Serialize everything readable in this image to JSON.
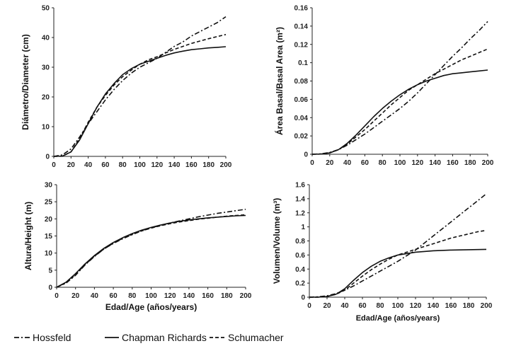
{
  "chart_data": [
    {
      "type": "line",
      "ylabel": "Diámetro/Diameter (cm)",
      "xlabel": "",
      "xlim": [
        0,
        200
      ],
      "ylim": [
        0,
        50
      ],
      "xticks": [
        0,
        20,
        40,
        60,
        80,
        100,
        120,
        140,
        160,
        180,
        200
      ],
      "yticks": [
        0,
        10,
        20,
        30,
        40,
        50
      ],
      "ytick_labels": [
        "0",
        "10",
        "20",
        "30",
        "40",
        "50"
      ],
      "x": [
        0,
        10,
        20,
        30,
        40,
        50,
        60,
        70,
        80,
        90,
        100,
        110,
        120,
        130,
        140,
        150,
        160,
        170,
        180,
        190,
        200
      ],
      "series": [
        {
          "name": "Hossfeld",
          "values": [
            0,
            0.5,
            2.5,
            6.5,
            11,
            15,
            19,
            22.5,
            25.5,
            28,
            30,
            31.5,
            33,
            35,
            37,
            38.5,
            40.5,
            42,
            43.5,
            45,
            47
          ]
        },
        {
          "name": "Chapman Richards",
          "values": [
            0,
            0.1,
            1.5,
            5.5,
            11,
            16.5,
            21,
            24.5,
            27.5,
            29.5,
            31,
            32,
            33,
            34,
            34.8,
            35.4,
            35.9,
            36.2,
            36.5,
            36.7,
            36.9
          ]
        },
        {
          "name": "Schumacher",
          "values": [
            0,
            0.05,
            1.5,
            6,
            11.5,
            16.5,
            20.5,
            24,
            26.8,
            29,
            31,
            32.5,
            33.5,
            34.8,
            36,
            37,
            38,
            38.8,
            39.6,
            40.3,
            41
          ]
        }
      ]
    },
    {
      "type": "line",
      "ylabel": "Área Basal/Basal Area (m²)",
      "xlabel": "",
      "xlim": [
        0,
        200
      ],
      "ylim": [
        0,
        0.16
      ],
      "xticks": [
        0,
        20,
        40,
        60,
        80,
        100,
        120,
        140,
        160,
        180,
        200
      ],
      "yticks": [
        0,
        0.02,
        0.04,
        0.06,
        0.08,
        0.1,
        0.12,
        0.14,
        0.16
      ],
      "ytick_labels": [
        "0",
        "0.02",
        "0.04",
        "0.06",
        "0.08",
        "0.1",
        "0.12",
        "0.14",
        "0.16"
      ],
      "x": [
        0,
        10,
        20,
        30,
        40,
        50,
        60,
        70,
        80,
        90,
        100,
        110,
        120,
        130,
        140,
        150,
        160,
        170,
        180,
        190,
        200
      ],
      "series": [
        {
          "name": "Hossfeld",
          "values": [
            0,
            0.0005,
            0.002,
            0.005,
            0.01,
            0.016,
            0.022,
            0.029,
            0.036,
            0.043,
            0.05,
            0.058,
            0.067,
            0.077,
            0.087,
            0.097,
            0.107,
            0.116,
            0.126,
            0.135,
            0.145
          ]
        },
        {
          "name": "Chapman Richards",
          "values": [
            0,
            0.0002,
            0.0015,
            0.005,
            0.012,
            0.021,
            0.031,
            0.041,
            0.05,
            0.058,
            0.065,
            0.071,
            0.076,
            0.08,
            0.083,
            0.086,
            0.088,
            0.089,
            0.09,
            0.091,
            0.092
          ]
        },
        {
          "name": "Schumacher",
          "values": [
            0,
            0.0002,
            0.0015,
            0.005,
            0.011,
            0.019,
            0.027,
            0.036,
            0.045,
            0.054,
            0.062,
            0.07,
            0.076,
            0.082,
            0.088,
            0.093,
            0.098,
            0.103,
            0.107,
            0.111,
            0.115
          ]
        }
      ]
    },
    {
      "type": "line",
      "ylabel": "Altura/Height (m)",
      "xlabel": "Edad/Age (años/years)",
      "xlim": [
        0,
        200
      ],
      "ylim": [
        0,
        30
      ],
      "xticks": [
        0,
        20,
        40,
        60,
        80,
        100,
        120,
        140,
        160,
        180,
        200
      ],
      "yticks": [
        0,
        5,
        10,
        15,
        20,
        25,
        30
      ],
      "ytick_labels": [
        "0",
        "5",
        "10",
        "15",
        "20",
        "25",
        "30"
      ],
      "x": [
        0,
        10,
        20,
        30,
        40,
        50,
        60,
        70,
        80,
        90,
        100,
        110,
        120,
        130,
        140,
        150,
        160,
        170,
        180,
        190,
        200
      ],
      "series": [
        {
          "name": "Hossfeld",
          "values": [
            0,
            1.2,
            3.5,
            6.5,
            9,
            11.2,
            12.8,
            14.2,
            15.4,
            16.5,
            17.4,
            18.1,
            18.8,
            19.4,
            20,
            20.6,
            21.1,
            21.6,
            22,
            22.4,
            22.8
          ]
        },
        {
          "name": "Chapman Richards",
          "values": [
            0,
            1.5,
            4,
            6.8,
            9.3,
            11.4,
            13.1,
            14.5,
            15.7,
            16.7,
            17.5,
            18.2,
            18.8,
            19.3,
            19.7,
            20,
            20.3,
            20.5,
            20.7,
            20.9,
            21
          ]
        },
        {
          "name": "Schumacher",
          "values": [
            0,
            1.3,
            3.7,
            6.6,
            9.1,
            11.2,
            12.9,
            14.3,
            15.5,
            16.5,
            17.3,
            18,
            18.6,
            19.1,
            19.5,
            19.9,
            20.2,
            20.5,
            20.8,
            21,
            21.2
          ]
        }
      ]
    },
    {
      "type": "line",
      "ylabel": "Volumen/Volume (m³)",
      "xlabel": "Edad/Age (años/years)",
      "xlim": [
        0,
        200
      ],
      "ylim": [
        0,
        1.6
      ],
      "xticks": [
        0,
        20,
        40,
        60,
        80,
        100,
        120,
        140,
        160,
        180,
        200
      ],
      "yticks": [
        0,
        0.2,
        0.4,
        0.6,
        0.8,
        1,
        1.2,
        1.4,
        1.6
      ],
      "ytick_labels": [
        "0",
        "0.2",
        "0.4",
        "0.6",
        "0.8",
        "1",
        "1.2",
        "1.4",
        "1.6"
      ],
      "x": [
        0,
        10,
        20,
        30,
        40,
        50,
        60,
        70,
        80,
        90,
        100,
        110,
        120,
        130,
        140,
        150,
        160,
        170,
        180,
        190,
        200
      ],
      "series": [
        {
          "name": "Hossfeld",
          "values": [
            0,
            0.005,
            0.02,
            0.05,
            0.1,
            0.16,
            0.23,
            0.3,
            0.37,
            0.44,
            0.51,
            0.59,
            0.67,
            0.77,
            0.87,
            0.97,
            1.07,
            1.17,
            1.27,
            1.37,
            1.47
          ]
        },
        {
          "name": "Chapman Richards",
          "values": [
            0,
            0.001,
            0.01,
            0.04,
            0.12,
            0.24,
            0.35,
            0.44,
            0.51,
            0.56,
            0.6,
            0.62,
            0.64,
            0.65,
            0.66,
            0.665,
            0.67,
            0.672,
            0.675,
            0.677,
            0.68
          ]
        },
        {
          "name": "Schumacher",
          "values": [
            0,
            0.001,
            0.01,
            0.04,
            0.1,
            0.2,
            0.3,
            0.39,
            0.47,
            0.54,
            0.6,
            0.64,
            0.68,
            0.72,
            0.76,
            0.8,
            0.84,
            0.87,
            0.9,
            0.93,
            0.95
          ]
        }
      ]
    }
  ],
  "legend": {
    "placement": "bottom-left",
    "items": [
      {
        "name": "Hossfeld",
        "style": "dash-dot"
      },
      {
        "name": "Chapman Richards",
        "style": "solid"
      },
      {
        "name": "Schumacher",
        "style": "dashed"
      }
    ]
  },
  "colors": {
    "line": "#111111",
    "axis": "#222222",
    "background": "#ffffff"
  }
}
